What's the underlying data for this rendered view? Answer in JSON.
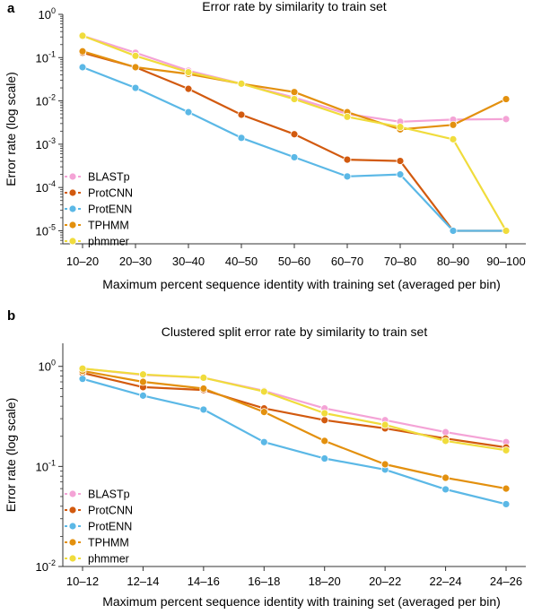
{
  "charts": [
    {
      "panel": "a",
      "chart_data": {
        "type": "line",
        "title": "Error rate by similarity to train set",
        "xlabel": "Maximum percent sequence identity with training set (averaged per bin)",
        "ylabel": "Error rate (log scale)",
        "yscale": "log",
        "ylim": [
          5e-06,
          1
        ],
        "y_ticks": [
          1,
          0.1,
          0.01,
          0.001,
          0.0001,
          1e-05
        ],
        "y_tick_labels": [
          [
            "10",
            "0"
          ],
          [
            "10",
            "-1"
          ],
          [
            "10",
            "-2"
          ],
          [
            "10",
            "-3"
          ],
          [
            "10",
            "-4"
          ],
          [
            "10",
            "-5"
          ]
        ],
        "categories": [
          "10–20",
          "20–30",
          "30–40",
          "40–50",
          "50–60",
          "60–70",
          "70–80",
          "80–90",
          "90–100"
        ],
        "legend": "bottom-left",
        "grid": false,
        "series": [
          {
            "name": "BLASTp",
            "color": "#f4a3d6",
            "values": [
              0.32,
              0.13,
              0.05,
              0.025,
              0.012,
              0.005,
              0.0033,
              0.0037,
              0.0038
            ]
          },
          {
            "name": "ProtCNN",
            "color": "#d25a0f",
            "values": [
              0.13,
              0.06,
              0.019,
              0.0048,
              0.0017,
              0.00044,
              0.00041,
              1e-05,
              1e-05
            ]
          },
          {
            "name": "ProtENN",
            "color": "#5bb8e6",
            "values": [
              0.06,
              0.02,
              0.0055,
              0.0014,
              0.0005,
              0.00018,
              0.0002,
              1e-05,
              1e-05
            ]
          },
          {
            "name": "TPHMM",
            "color": "#e3900e",
            "values": [
              0.14,
              0.06,
              0.042,
              0.025,
              0.016,
              0.0055,
              0.0022,
              0.0028,
              0.011
            ]
          },
          {
            "name": "phmmer",
            "color": "#f0dc3c",
            "values": [
              0.32,
              0.11,
              0.046,
              0.025,
              0.011,
              0.0043,
              0.0025,
              0.0013,
              1e-05
            ]
          }
        ]
      }
    },
    {
      "panel": "b",
      "chart_data": {
        "type": "line",
        "title": "Clustered split error rate by similarity to train set",
        "xlabel": "Maximum percent sequence identity with training set (averaged per bin)",
        "ylabel": "Error rate (log scale)",
        "yscale": "log",
        "ylim": [
          0.01,
          1.7
        ],
        "y_ticks": [
          1,
          0.1,
          0.01
        ],
        "y_tick_labels": [
          [
            "10",
            "0"
          ],
          [
            "10",
            "-1"
          ],
          [
            "10",
            "-2"
          ]
        ],
        "categories": [
          "10–12",
          "12–14",
          "14–16",
          "16–18",
          "18–20",
          "20–22",
          "22–24",
          "24–26"
        ],
        "legend": "bottom-left",
        "grid": false,
        "series": [
          {
            "name": "BLASTp",
            "color": "#f4a3d6",
            "values": [
              0.95,
              0.82,
              0.77,
              0.57,
              0.38,
              0.29,
              0.22,
              0.175
            ]
          },
          {
            "name": "ProtCNN",
            "color": "#d25a0f",
            "values": [
              0.86,
              0.62,
              0.58,
              0.38,
              0.29,
              0.24,
              0.19,
              0.155
            ]
          },
          {
            "name": "ProtENN",
            "color": "#5bb8e6",
            "values": [
              0.75,
              0.51,
              0.37,
              0.175,
              0.12,
              0.093,
              0.059,
              0.042
            ]
          },
          {
            "name": "TPHMM",
            "color": "#e3900e",
            "values": [
              0.9,
              0.7,
              0.6,
              0.35,
              0.18,
              0.105,
              0.077,
              0.06
            ]
          },
          {
            "name": "phmmer",
            "color": "#f0dc3c",
            "values": [
              0.95,
              0.83,
              0.77,
              0.56,
              0.34,
              0.26,
              0.18,
              0.145
            ]
          }
        ]
      }
    }
  ]
}
